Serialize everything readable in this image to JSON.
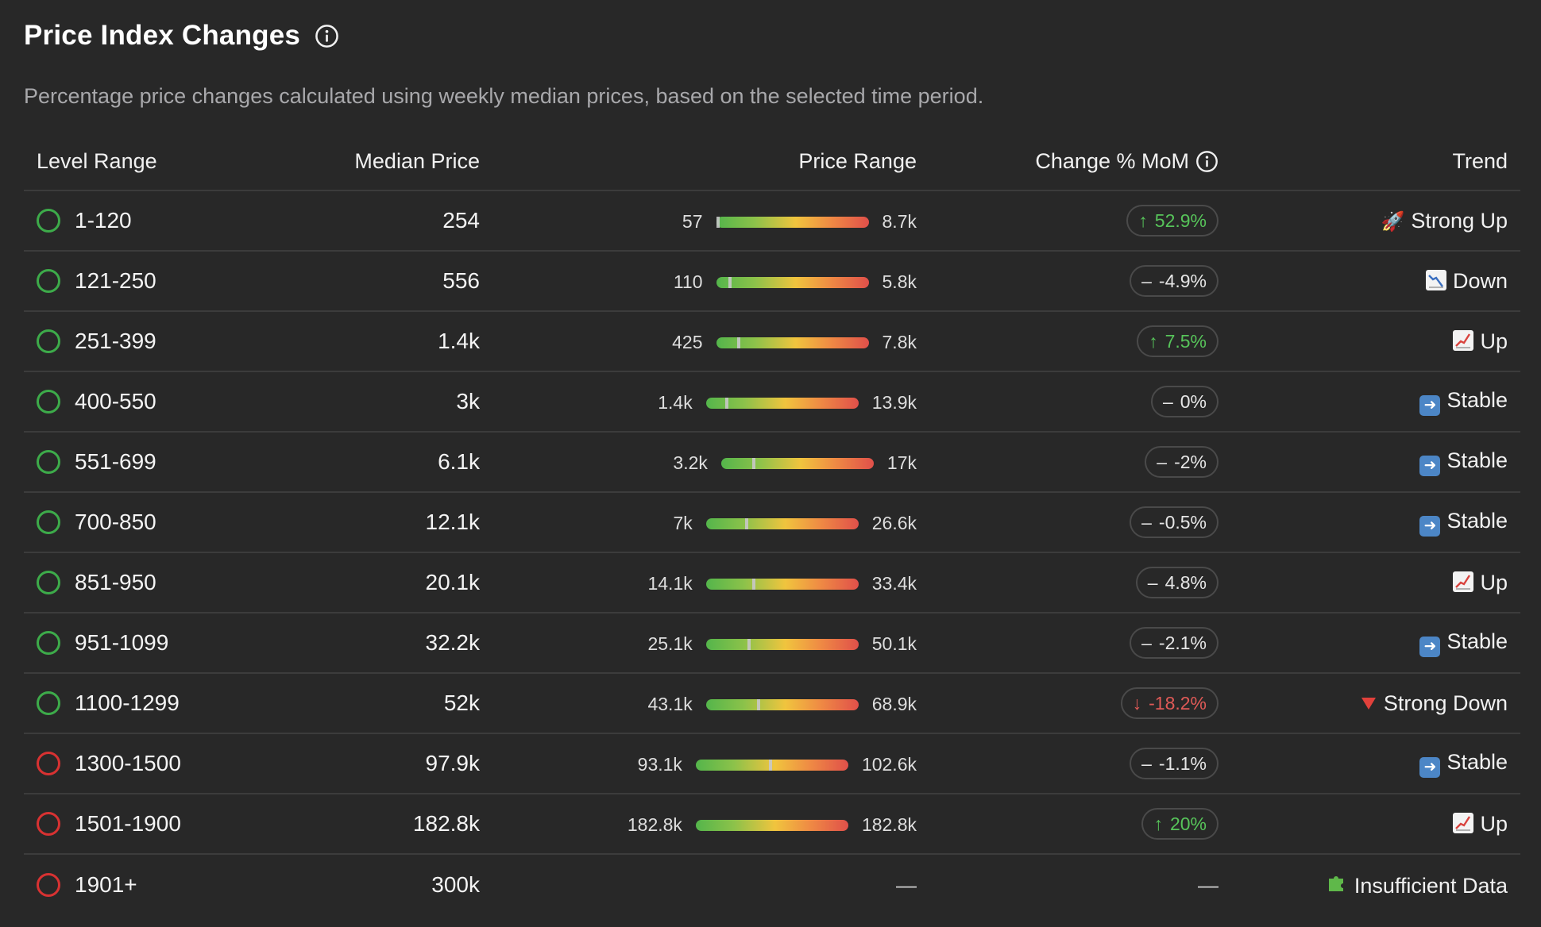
{
  "header": {
    "title": "Price Index Changes",
    "subtitle": "Percentage price changes calculated using weekly median prices, based on the selected time period."
  },
  "columns": {
    "level": "Level Range",
    "median": "Median Price",
    "range": "Price Range",
    "change": "Change % MoM",
    "trend": "Trend"
  },
  "rows": [
    {
      "level": "1-120",
      "status": "green",
      "median": "254",
      "low": "57",
      "high": "8.7k",
      "marker_fraction": 0.0,
      "change": "52.9%",
      "change_dir": "up",
      "trend": "Strong Up",
      "trend_icon": "rocket-icon"
    },
    {
      "level": "121-250",
      "status": "green",
      "median": "556",
      "low": "110",
      "high": "5.8k",
      "marker_fraction": 0.08,
      "change": "-4.9%",
      "change_dir": "flat",
      "trend": "Down",
      "trend_icon": "chart-down-icon"
    },
    {
      "level": "251-399",
      "status": "green",
      "median": "1.4k",
      "low": "425",
      "high": "7.8k",
      "marker_fraction": 0.14,
      "change": "7.5%",
      "change_dir": "up",
      "trend": "Up",
      "trend_icon": "chart-up-icon"
    },
    {
      "level": "400-550",
      "status": "green",
      "median": "3k",
      "low": "1.4k",
      "high": "13.9k",
      "marker_fraction": 0.13,
      "change": "0%",
      "change_dir": "flat",
      "trend": "Stable",
      "trend_icon": "arrow-right-icon"
    },
    {
      "level": "551-699",
      "status": "green",
      "median": "6.1k",
      "low": "3.2k",
      "high": "17k",
      "marker_fraction": 0.21,
      "change": "-2%",
      "change_dir": "flat",
      "trend": "Stable",
      "trend_icon": "arrow-right-icon"
    },
    {
      "level": "700-850",
      "status": "green",
      "median": "12.1k",
      "low": "7k",
      "high": "26.6k",
      "marker_fraction": 0.26,
      "change": "-0.5%",
      "change_dir": "flat",
      "trend": "Stable",
      "trend_icon": "arrow-right-icon"
    },
    {
      "level": "851-950",
      "status": "green",
      "median": "20.1k",
      "low": "14.1k",
      "high": "33.4k",
      "marker_fraction": 0.31,
      "change": "4.8%",
      "change_dir": "flat",
      "trend": "Up",
      "trend_icon": "chart-up-icon"
    },
    {
      "level": "951-1099",
      "status": "green",
      "median": "32.2k",
      "low": "25.1k",
      "high": "50.1k",
      "marker_fraction": 0.28,
      "change": "-2.1%",
      "change_dir": "flat",
      "trend": "Stable",
      "trend_icon": "arrow-right-icon"
    },
    {
      "level": "1100-1299",
      "status": "green",
      "median": "52k",
      "low": "43.1k",
      "high": "68.9k",
      "marker_fraction": 0.34,
      "change": "-18.2%",
      "change_dir": "down",
      "trend": "Strong Down",
      "trend_icon": "red-triangle-down-icon"
    },
    {
      "level": "1300-1500",
      "status": "red",
      "median": "97.9k",
      "low": "93.1k",
      "high": "102.6k",
      "marker_fraction": 0.49,
      "change": "-1.1%",
      "change_dir": "flat",
      "trend": "Stable",
      "trend_icon": "arrow-right-icon"
    },
    {
      "level": "1501-1900",
      "status": "red",
      "median": "182.8k",
      "low": "182.8k",
      "high": "182.8k",
      "marker_fraction": null,
      "change": "20%",
      "change_dir": "up",
      "trend": "Up",
      "trend_icon": "chart-up-icon"
    },
    {
      "level": "1901+",
      "status": "red",
      "median": "300k",
      "low": null,
      "high": null,
      "marker_fraction": null,
      "change": null,
      "change_dir": null,
      "range_placeholder": "—",
      "change_placeholder": "—",
      "trend": "Insufficient Data",
      "trend_icon": "puzzle-icon"
    }
  ],
  "colors": {
    "background": "#282828",
    "status_green": "#3dab4a",
    "status_red": "#d83232",
    "positive": "#57c45a",
    "negative": "#e05a57"
  }
}
